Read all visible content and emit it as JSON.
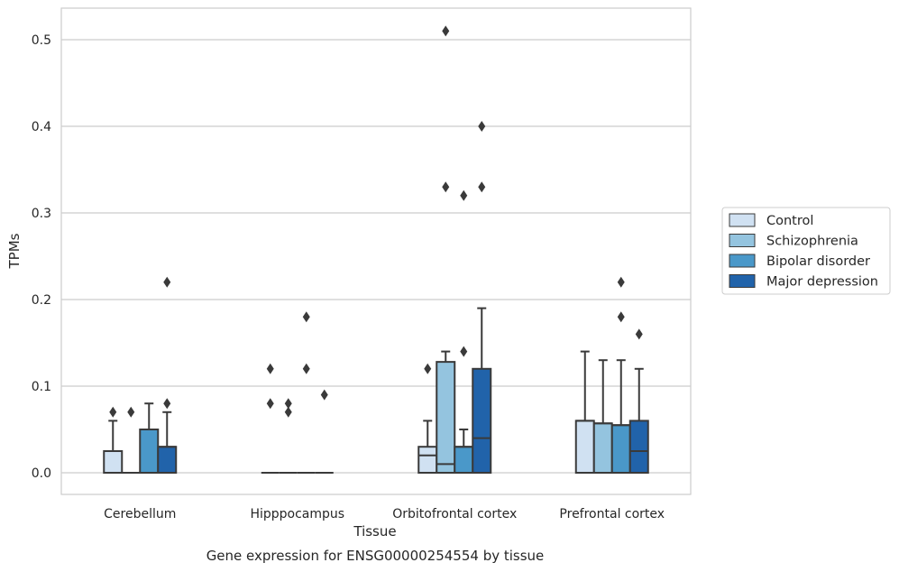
{
  "chart_data": {
    "type": "box",
    "title": "",
    "xlabel": "Tissue",
    "ylabel": "TPMs",
    "caption": "Gene expression for ENSG00000254554 by tissue",
    "categories": [
      "Cerebellum",
      "Hipppocampus",
      "Orbitofrontal cortex",
      "Prefrontal cortex"
    ],
    "yticks": [
      "0.0",
      "0.1",
      "0.2",
      "0.3",
      "0.4",
      "0.5"
    ],
    "ylim": [
      -0.025,
      0.537
    ],
    "grid": "horizontal",
    "legend_position": "center-right",
    "series": [
      {
        "name": "Control",
        "color": "#d0e1f2",
        "boxes": [
          {
            "min": 0,
            "q1": 0,
            "median": 0,
            "q3": 0.025,
            "max": 0.06,
            "outliers": [
              0.07
            ]
          },
          {
            "min": 0,
            "q1": 0,
            "median": 0,
            "q3": 0,
            "max": 0,
            "outliers": [
              0.08,
              0.12
            ]
          },
          {
            "min": 0,
            "q1": 0,
            "median": 0.02,
            "q3": 0.03,
            "max": 0.06,
            "outliers": [
              0.12
            ]
          },
          {
            "min": 0,
            "q1": 0,
            "median": 0.06,
            "q3": 0.06,
            "max": 0.14,
            "outliers": []
          }
        ]
      },
      {
        "name": "Schizophrenia",
        "color": "#94c4df",
        "boxes": [
          {
            "min": 0,
            "q1": 0,
            "median": 0,
            "q3": 0,
            "max": 0,
            "outliers": [
              0.07
            ]
          },
          {
            "min": 0,
            "q1": 0,
            "median": 0,
            "q3": 0,
            "max": 0,
            "outliers": [
              0.07,
              0.08
            ]
          },
          {
            "min": 0,
            "q1": 0,
            "median": 0.01,
            "q3": 0.128,
            "max": 0.14,
            "outliers": [
              0.33,
              0.51
            ]
          },
          {
            "min": 0,
            "q1": 0,
            "median": 0.057,
            "q3": 0.057,
            "max": 0.13,
            "outliers": []
          }
        ]
      },
      {
        "name": "Bipolar disorder",
        "color": "#4a98c9",
        "boxes": [
          {
            "min": 0,
            "q1": 0,
            "median": 0.05,
            "q3": 0.05,
            "max": 0.08,
            "outliers": []
          },
          {
            "min": 0,
            "q1": 0,
            "median": 0,
            "q3": 0,
            "max": 0,
            "outliers": [
              0.12,
              0.18
            ]
          },
          {
            "min": 0,
            "q1": 0,
            "median": 0.03,
            "q3": 0.03,
            "max": 0.05,
            "outliers": [
              0.14,
              0.32
            ]
          },
          {
            "min": 0,
            "q1": 0,
            "median": 0.055,
            "q3": 0.055,
            "max": 0.13,
            "outliers": [
              0.18,
              0.22
            ]
          }
        ]
      },
      {
        "name": "Major depression",
        "color": "#2163aa",
        "boxes": [
          {
            "min": 0,
            "q1": 0,
            "median": 0.03,
            "q3": 0.03,
            "max": 0.07,
            "outliers": [
              0.08,
              0.22
            ]
          },
          {
            "min": 0,
            "q1": 0,
            "median": 0,
            "q3": 0,
            "max": 0,
            "outliers": [
              0.09
            ]
          },
          {
            "min": 0,
            "q1": 0,
            "median": 0.04,
            "q3": 0.12,
            "max": 0.19,
            "outliers": [
              0.33,
              0.4
            ]
          },
          {
            "min": 0,
            "q1": 0,
            "median": 0.025,
            "q3": 0.06,
            "max": 0.12,
            "outliers": [
              0.16
            ]
          }
        ]
      }
    ]
  }
}
